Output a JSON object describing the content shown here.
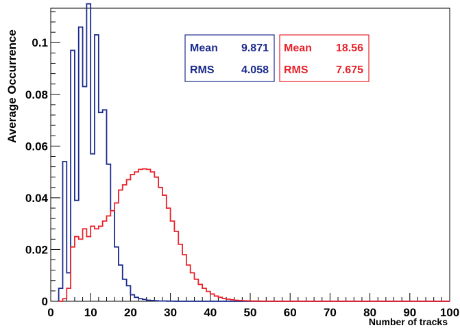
{
  "chart_data": {
    "type": "histogram",
    "xlabel": "Number of tracks",
    "ylabel": "Average Occurrence",
    "xlim": [
      0,
      100
    ],
    "ylim": [
      0,
      0.1133
    ],
    "x_ticks": [
      "0",
      "10",
      "20",
      "30",
      "40",
      "50",
      "60",
      "70",
      "80",
      "90",
      "100"
    ],
    "y_ticks": [
      "0",
      "0.02",
      "0.04",
      "0.06",
      "0.08",
      "0.1"
    ],
    "y_tick_values": [
      0,
      0.02,
      0.04,
      0.06,
      0.08,
      0.1
    ],
    "bin_width": 1,
    "series": [
      {
        "color": "#1a2a8c",
        "x_start": 2,
        "values": [
          0.005,
          0.054,
          0.011,
          0.097,
          0.039,
          0.106,
          0.083,
          0.115,
          0.057,
          0.103,
          0.073,
          0.074,
          0.053,
          0.035,
          0.021,
          0.014,
          0.0085,
          0.006,
          0.0025,
          0.0015,
          0.001,
          0.0007,
          0.0004,
          0.0003,
          0.0002,
          0.0001,
          0.0001,
          5e-05,
          3e-05,
          2e-05
        ],
        "stats": {
          "mean_label": "Mean",
          "mean": "9.871",
          "rms_label": "RMS",
          "rms": "4.058"
        }
      },
      {
        "color": "#e8222a",
        "x_start": 2,
        "values": [
          0,
          0.001,
          0.005,
          0.021,
          0.025,
          0.024,
          0.028,
          0.025,
          0.029,
          0.028,
          0.029,
          0.031,
          0.033,
          0.035,
          0.038,
          0.043,
          0.045,
          0.047,
          0.049,
          0.05,
          0.051,
          0.0512,
          0.051,
          0.05,
          0.048,
          0.044,
          0.041,
          0.036,
          0.031,
          0.027,
          0.022,
          0.018,
          0.014,
          0.011,
          0.0085,
          0.0065,
          0.005,
          0.0038,
          0.0028,
          0.002,
          0.0015,
          0.0011,
          0.0008,
          0.0006,
          0.0004,
          0.0003,
          0.0002,
          0.00015,
          0.0001,
          8e-05,
          5e-05,
          4e-05,
          3e-05,
          2e-05
        ],
        "stats": {
          "mean_label": "Mean",
          "mean": "18.56",
          "rms_label": "RMS",
          "rms": "7.675"
        }
      }
    ]
  }
}
